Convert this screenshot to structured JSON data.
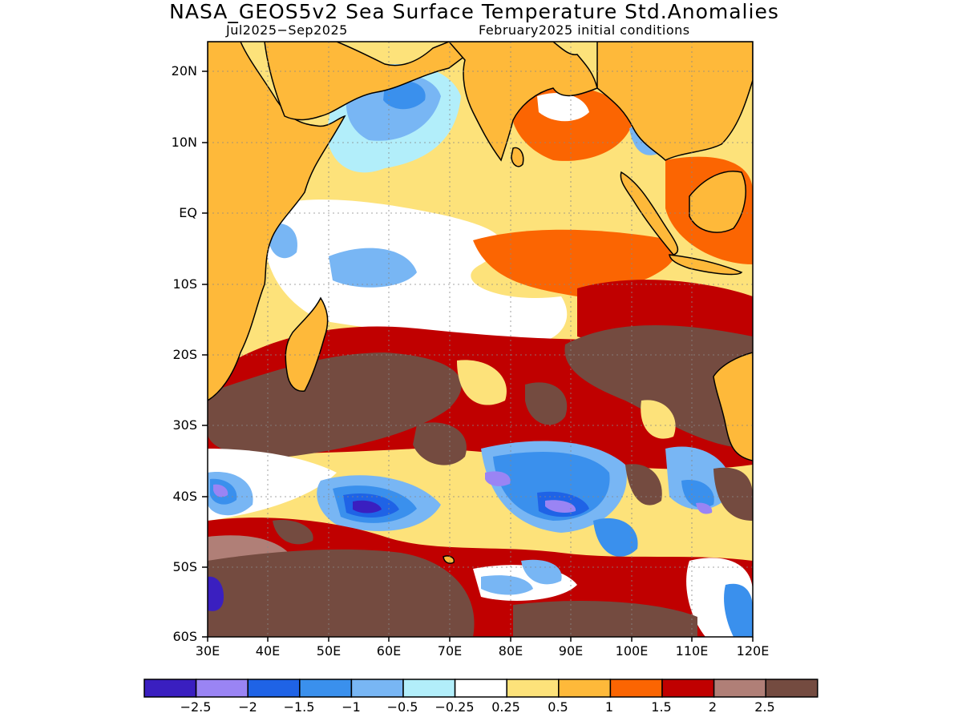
{
  "title": "NASA_GEOS5v2 Sea Surface Temperature Std.Anomalies",
  "subtitle_left": "Jul2025-Sep2025",
  "subtitle_right": "February2025 initial conditions",
  "lat_labels": [
    "20N",
    "10N",
    "EQ",
    "10S",
    "20S",
    "30S",
    "40S",
    "50S",
    "60S"
  ],
  "lon_labels": [
    "30E",
    "40E",
    "50E",
    "60E",
    "70E",
    "80E",
    "90E",
    "100E",
    "110E",
    "120E"
  ],
  "colorbar": {
    "colors": [
      "#3a1fc0",
      "#9a84f4",
      "#1f63e6",
      "#3a90ed",
      "#78b6f4",
      "#b2eefa",
      "#ffffff",
      "#fde27a",
      "#feb93a",
      "#fb6502",
      "#c00000",
      "#b07f77",
      "#744b40"
    ],
    "labels": [
      "-2.5",
      "-2",
      "-1.5",
      "-1",
      "-0.5",
      "-0.25",
      "0.25",
      "0.5",
      "1",
      "1.5",
      "2",
      "2.5"
    ]
  },
  "colors": {
    "land": "#feb93a",
    "coast": "#000000"
  }
}
